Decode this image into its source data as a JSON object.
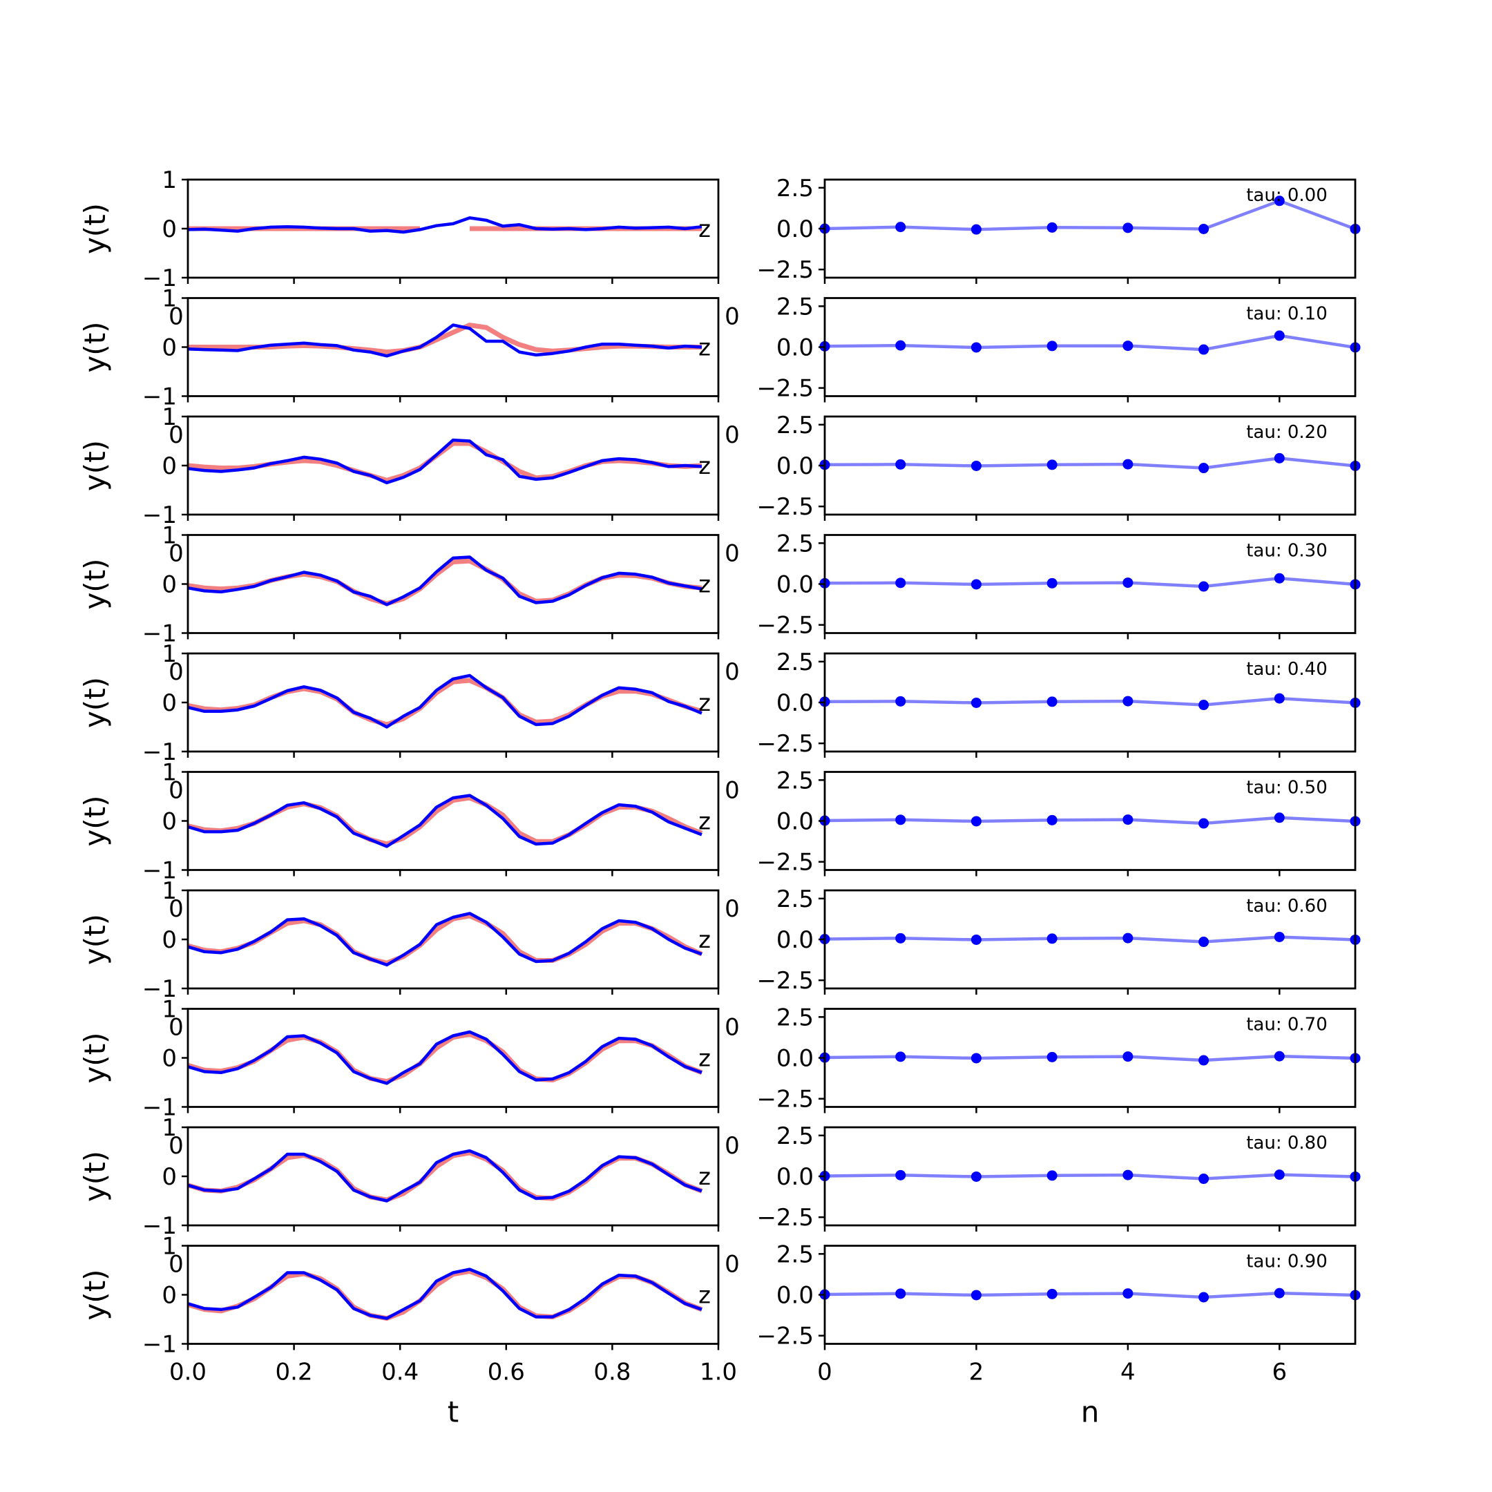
{
  "chart_data": [
    {
      "type": "line",
      "panel": "left-column",
      "xlabel": "t",
      "ylabel": "y(t)",
      "xlim": [
        0.0,
        1.0
      ],
      "ylim": [
        -1,
        1
      ],
      "x_tick_labels": [
        "0.0",
        "0.2",
        "0.4",
        "0.6",
        "0.8",
        "1.0"
      ],
      "y_tick_labels": [
        "−1",
        "0",
        "1"
      ],
      "clipped_overlap_label": "0",
      "end_marker_label": "z",
      "x": [
        0.0,
        0.03125,
        0.0625,
        0.09375,
        0.125,
        0.15625,
        0.1875,
        0.21875,
        0.25,
        0.28125,
        0.3125,
        0.34375,
        0.375,
        0.40625,
        0.4375,
        0.46875,
        0.5,
        0.53125,
        0.5625,
        0.59375,
        0.625,
        0.65625,
        0.6875,
        0.71875,
        0.75,
        0.78125,
        0.8125,
        0.84375,
        0.875,
        0.90625,
        0.9375,
        0.96875
      ],
      "red_color": "#f28080",
      "blue_color": "#0000ff",
      "rows": [
        {
          "red": [
            0.0,
            0.0,
            0.0,
            0.0,
            0.0,
            0.0,
            0.0,
            0.0,
            0.0,
            0.0,
            0.0,
            0.0,
            0.0,
            0.0,
            0.0,
            null,
            null,
            0.0,
            0.0,
            0.0,
            0.0,
            0.0,
            0.0,
            0.0,
            0.0,
            0.0,
            0.0,
            0.0,
            0.0,
            0.0,
            0.0,
            0.0
          ],
          "blue": [
            -0.02,
            -0.01,
            -0.03,
            -0.05,
            0.0,
            0.03,
            0.04,
            0.03,
            0.01,
            0.0,
            0.0,
            -0.05,
            -0.04,
            -0.07,
            -0.02,
            0.06,
            0.1,
            0.22,
            0.17,
            0.05,
            0.08,
            0.0,
            -0.01,
            0.0,
            -0.02,
            0.0,
            0.03,
            0.01,
            0.02,
            0.03,
            0.0,
            0.04
          ]
        },
        {
          "red": [
            0.0,
            0.0,
            0.0,
            0.0,
            0.0,
            0.0,
            0.02,
            0.03,
            0.02,
            0.0,
            -0.03,
            -0.06,
            -0.1,
            -0.07,
            0.0,
            0.15,
            0.3,
            0.45,
            0.4,
            0.2,
            0.05,
            -0.05,
            -0.08,
            -0.06,
            -0.03,
            0.0,
            0.02,
            0.02,
            0.01,
            0.0,
            0.0,
            0.0
          ],
          "blue": [
            -0.04,
            -0.05,
            -0.06,
            -0.07,
            -0.01,
            0.04,
            0.06,
            0.08,
            0.05,
            0.03,
            -0.06,
            -0.1,
            -0.18,
            -0.08,
            0.0,
            0.2,
            0.45,
            0.38,
            0.12,
            0.12,
            -0.1,
            -0.16,
            -0.13,
            -0.08,
            0.0,
            0.06,
            0.06,
            0.04,
            0.02,
            -0.02,
            0.02,
            0.0
          ]
        },
        {
          "red": [
            0.0,
            -0.03,
            -0.05,
            -0.05,
            -0.02,
            0.03,
            0.07,
            0.1,
            0.08,
            0.0,
            -0.1,
            -0.2,
            -0.3,
            -0.2,
            -0.05,
            0.2,
            0.45,
            0.45,
            0.28,
            0.08,
            -0.12,
            -0.25,
            -0.22,
            -0.12,
            0.0,
            0.08,
            0.1,
            0.08,
            0.05,
            0.0,
            -0.02,
            0.0
          ],
          "blue": [
            -0.06,
            -0.1,
            -0.12,
            -0.09,
            -0.05,
            0.04,
            0.1,
            0.17,
            0.13,
            0.05,
            -0.12,
            -0.2,
            -0.35,
            -0.24,
            -0.08,
            0.22,
            0.52,
            0.5,
            0.22,
            0.12,
            -0.22,
            -0.28,
            -0.25,
            -0.14,
            -0.02,
            0.1,
            0.14,
            0.12,
            0.06,
            -0.02,
            0.0,
            -0.02
          ]
        },
        {
          "red": [
            -0.03,
            -0.08,
            -0.1,
            -0.08,
            -0.03,
            0.07,
            0.15,
            0.2,
            0.15,
            0.05,
            -0.15,
            -0.3,
            -0.4,
            -0.3,
            -0.1,
            0.2,
            0.45,
            0.47,
            0.3,
            0.1,
            -0.2,
            -0.35,
            -0.33,
            -0.2,
            -0.02,
            0.12,
            0.18,
            0.17,
            0.12,
            0.02,
            -0.05,
            -0.08
          ],
          "blue": [
            -0.08,
            -0.14,
            -0.16,
            -0.11,
            -0.05,
            0.07,
            0.15,
            0.24,
            0.18,
            0.06,
            -0.16,
            -0.25,
            -0.42,
            -0.26,
            -0.08,
            0.25,
            0.53,
            0.55,
            0.28,
            0.12,
            -0.25,
            -0.38,
            -0.35,
            -0.22,
            -0.03,
            0.13,
            0.22,
            0.2,
            0.14,
            0.02,
            -0.04,
            -0.1
          ]
        },
        {
          "red": [
            -0.06,
            -0.13,
            -0.15,
            -0.12,
            -0.05,
            0.1,
            0.22,
            0.28,
            0.22,
            0.07,
            -0.2,
            -0.35,
            -0.45,
            -0.33,
            -0.12,
            0.2,
            0.42,
            0.45,
            0.3,
            0.1,
            -0.25,
            -0.4,
            -0.38,
            -0.25,
            -0.05,
            0.13,
            0.23,
            0.23,
            0.17,
            0.05,
            -0.08,
            -0.18
          ],
          "blue": [
            -0.1,
            -0.18,
            -0.18,
            -0.15,
            -0.07,
            0.08,
            0.24,
            0.32,
            0.25,
            0.09,
            -0.2,
            -0.32,
            -0.5,
            -0.28,
            -0.1,
            0.25,
            0.48,
            0.55,
            0.3,
            0.1,
            -0.28,
            -0.45,
            -0.43,
            -0.28,
            -0.06,
            0.15,
            0.3,
            0.27,
            0.2,
            0.02,
            -0.08,
            -0.22
          ]
        },
        {
          "red": [
            -0.1,
            -0.18,
            -0.2,
            -0.15,
            -0.05,
            0.12,
            0.28,
            0.35,
            0.27,
            0.1,
            -0.22,
            -0.38,
            -0.47,
            -0.35,
            -0.12,
            0.2,
            0.42,
            0.47,
            0.33,
            0.12,
            -0.25,
            -0.42,
            -0.42,
            -0.28,
            -0.08,
            0.15,
            0.28,
            0.28,
            0.2,
            0.05,
            -0.12,
            -0.25
          ],
          "blue": [
            -0.12,
            -0.22,
            -0.22,
            -0.19,
            -0.05,
            0.12,
            0.32,
            0.37,
            0.25,
            0.08,
            -0.25,
            -0.38,
            -0.52,
            -0.3,
            -0.08,
            0.28,
            0.47,
            0.52,
            0.32,
            0.05,
            -0.32,
            -0.47,
            -0.45,
            -0.28,
            -0.05,
            0.17,
            0.33,
            0.3,
            0.18,
            -0.02,
            -0.15,
            -0.28
          ]
        },
        {
          "red": [
            -0.13,
            -0.22,
            -0.25,
            -0.18,
            -0.06,
            0.14,
            0.33,
            0.38,
            0.3,
            0.1,
            -0.25,
            -0.4,
            -0.48,
            -0.35,
            -0.12,
            0.2,
            0.42,
            0.48,
            0.33,
            0.12,
            -0.25,
            -0.43,
            -0.43,
            -0.3,
            -0.1,
            0.17,
            0.33,
            0.33,
            0.22,
            0.05,
            -0.15,
            -0.3
          ],
          "blue": [
            -0.15,
            -0.25,
            -0.27,
            -0.2,
            -0.04,
            0.15,
            0.4,
            0.42,
            0.28,
            0.08,
            -0.27,
            -0.4,
            -0.52,
            -0.32,
            -0.1,
            0.3,
            0.45,
            0.53,
            0.35,
            0.05,
            -0.3,
            -0.45,
            -0.43,
            -0.28,
            -0.05,
            0.22,
            0.38,
            0.35,
            0.22,
            0.0,
            -0.18,
            -0.3
          ]
        },
        {
          "red": [
            -0.15,
            -0.25,
            -0.27,
            -0.2,
            -0.07,
            0.15,
            0.36,
            0.42,
            0.32,
            0.12,
            -0.25,
            -0.42,
            -0.48,
            -0.35,
            -0.12,
            0.2,
            0.42,
            0.48,
            0.35,
            0.12,
            -0.25,
            -0.43,
            -0.45,
            -0.32,
            -0.1,
            0.18,
            0.35,
            0.35,
            0.25,
            0.05,
            -0.17,
            -0.3
          ],
          "blue": [
            -0.18,
            -0.28,
            -0.3,
            -0.22,
            -0.05,
            0.15,
            0.43,
            0.45,
            0.3,
            0.1,
            -0.28,
            -0.42,
            -0.52,
            -0.3,
            -0.12,
            0.28,
            0.45,
            0.53,
            0.38,
            0.07,
            -0.28,
            -0.45,
            -0.43,
            -0.3,
            -0.07,
            0.23,
            0.4,
            0.38,
            0.25,
            0.02,
            -0.18,
            -0.3
          ]
        },
        {
          "red": [
            -0.18,
            -0.28,
            -0.3,
            -0.22,
            -0.07,
            0.15,
            0.38,
            0.43,
            0.33,
            0.12,
            -0.25,
            -0.42,
            -0.48,
            -0.35,
            -0.12,
            0.2,
            0.42,
            0.48,
            0.35,
            0.12,
            -0.25,
            -0.43,
            -0.45,
            -0.32,
            -0.1,
            0.2,
            0.37,
            0.37,
            0.25,
            0.05,
            -0.17,
            -0.3
          ],
          "blue": [
            -0.18,
            -0.28,
            -0.3,
            -0.25,
            -0.05,
            0.15,
            0.45,
            0.45,
            0.3,
            0.1,
            -0.28,
            -0.42,
            -0.5,
            -0.3,
            -0.12,
            0.28,
            0.45,
            0.52,
            0.38,
            0.08,
            -0.28,
            -0.45,
            -0.43,
            -0.3,
            -0.07,
            0.22,
            0.4,
            0.38,
            0.25,
            0.03,
            -0.18,
            -0.3
          ]
        },
        {
          "red": [
            -0.2,
            -0.3,
            -0.33,
            -0.23,
            -0.08,
            0.15,
            0.38,
            0.43,
            0.33,
            0.12,
            -0.25,
            -0.42,
            -0.48,
            -0.35,
            -0.12,
            0.2,
            0.42,
            0.48,
            0.35,
            0.12,
            -0.25,
            -0.43,
            -0.45,
            -0.32,
            -0.1,
            0.2,
            0.37,
            0.37,
            0.25,
            0.05,
            -0.17,
            -0.3
          ],
          "blue": [
            -0.18,
            -0.28,
            -0.3,
            -0.25,
            -0.05,
            0.15,
            0.45,
            0.45,
            0.3,
            0.1,
            -0.28,
            -0.42,
            -0.48,
            -0.3,
            -0.12,
            0.28,
            0.45,
            0.52,
            0.38,
            0.08,
            -0.28,
            -0.45,
            -0.45,
            -0.3,
            -0.07,
            0.22,
            0.4,
            0.38,
            0.25,
            0.03,
            -0.18,
            -0.3
          ]
        }
      ]
    },
    {
      "type": "line",
      "panel": "right-column",
      "xlabel": "n",
      "ylabel": "",
      "xlim": [
        0,
        7
      ],
      "ylim": [
        -3,
        3
      ],
      "x_tick_labels": [
        "0",
        "2",
        "4",
        "6"
      ],
      "y_tick_labels": [
        "−2.5",
        "0.0",
        "2.5"
      ],
      "clipped_overlap_label": "0",
      "line_color": "#8080ff",
      "marker_color": "#0000ff",
      "x": [
        0,
        1,
        2,
        3,
        4,
        5,
        6,
        7
      ],
      "rows": [
        {
          "tau": "tau: 0.00",
          "y": [
            0.0,
            0.1,
            -0.05,
            0.07,
            0.05,
            -0.02,
            1.7,
            -0.02
          ]
        },
        {
          "tau": "tau: 0.10",
          "y": [
            0.05,
            0.1,
            -0.02,
            0.07,
            0.08,
            -0.15,
            0.7,
            -0.02
          ]
        },
        {
          "tau": "tau: 0.20",
          "y": [
            0.05,
            0.07,
            -0.02,
            0.05,
            0.08,
            -0.15,
            0.45,
            -0.02
          ]
        },
        {
          "tau": "tau: 0.30",
          "y": [
            0.05,
            0.07,
            -0.02,
            0.05,
            0.08,
            -0.15,
            0.35,
            -0.02
          ]
        },
        {
          "tau": "tau: 0.40",
          "y": [
            0.05,
            0.07,
            -0.02,
            0.05,
            0.08,
            -0.15,
            0.25,
            -0.02
          ]
        },
        {
          "tau": "tau: 0.50",
          "y": [
            0.02,
            0.07,
            -0.02,
            0.05,
            0.08,
            -0.15,
            0.2,
            -0.02
          ]
        },
        {
          "tau": "tau: 0.60",
          "y": [
            0.02,
            0.07,
            -0.02,
            0.05,
            0.08,
            -0.15,
            0.15,
            -0.02
          ]
        },
        {
          "tau": "tau: 0.70",
          "y": [
            0.02,
            0.07,
            -0.02,
            0.05,
            0.08,
            -0.15,
            0.1,
            -0.02
          ]
        },
        {
          "tau": "tau: 0.80",
          "y": [
            0.02,
            0.07,
            -0.02,
            0.05,
            0.08,
            -0.15,
            0.1,
            -0.02
          ]
        },
        {
          "tau": "tau: 0.90",
          "y": [
            0.02,
            0.07,
            -0.02,
            0.05,
            0.08,
            -0.15,
            0.1,
            -0.02
          ]
        }
      ]
    }
  ]
}
